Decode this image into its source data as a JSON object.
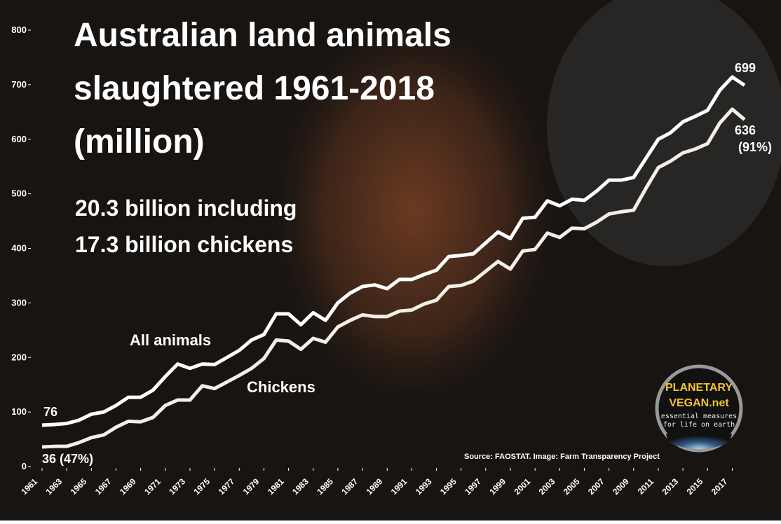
{
  "chart_data": {
    "type": "line",
    "title": [
      "Australian land animals",
      "slaughtered 1961-2018",
      "(million)"
    ],
    "subtitle": [
      "20.3 billion including",
      "17.3 billion chickens"
    ],
    "source": "Source: FAOSTAT. Image: Farm Transparency Project",
    "logo": {
      "name": [
        "PLANETARY",
        "VEGAN.net"
      ],
      "tagline": [
        "essential measures",
        "for life on earth"
      ]
    },
    "x": [
      1961,
      1962,
      1963,
      1964,
      1965,
      1966,
      1967,
      1968,
      1969,
      1970,
      1971,
      1972,
      1973,
      1974,
      1975,
      1976,
      1977,
      1978,
      1979,
      1980,
      1981,
      1982,
      1983,
      1984,
      1985,
      1986,
      1987,
      1988,
      1989,
      1990,
      1991,
      1992,
      1993,
      1994,
      1995,
      1996,
      1997,
      1998,
      1999,
      2000,
      2001,
      2002,
      2003,
      2004,
      2005,
      2006,
      2007,
      2008,
      2009,
      2010,
      2011,
      2012,
      2013,
      2014,
      2015,
      2016,
      2017,
      2018
    ],
    "xlim": [
      1961,
      2018
    ],
    "xticks": [
      1961,
      1963,
      1965,
      1967,
      1969,
      1971,
      1973,
      1975,
      1977,
      1979,
      1981,
      1983,
      1985,
      1987,
      1989,
      1991,
      1993,
      1995,
      1997,
      1999,
      2001,
      2003,
      2005,
      2007,
      2009,
      2011,
      2013,
      2015,
      2017
    ],
    "ylim": [
      0,
      800
    ],
    "yticks": [
      0,
      100,
      200,
      300,
      400,
      500,
      600,
      700,
      800
    ],
    "series": [
      {
        "name": "All animals",
        "color": "#ffffff",
        "values": [
          76,
          77,
          79,
          85,
          96,
          100,
          112,
          127,
          127,
          140,
          165,
          188,
          180,
          188,
          187,
          200,
          213,
          232,
          242,
          280,
          280,
          260,
          282,
          268,
          300,
          318,
          330,
          333,
          326,
          343,
          343,
          352,
          360,
          385,
          387,
          390,
          410,
          430,
          418,
          455,
          457,
          487,
          478,
          490,
          488,
          505,
          525,
          525,
          530,
          565,
          600,
          612,
          632,
          642,
          653,
          690,
          714,
          699
        ]
      },
      {
        "name": "Chickens",
        "color": "#f2efe4",
        "values": [
          36,
          37,
          37,
          44,
          53,
          58,
          72,
          83,
          82,
          90,
          112,
          122,
          122,
          148,
          143,
          155,
          167,
          180,
          198,
          232,
          230,
          215,
          235,
          228,
          256,
          268,
          278,
          275,
          275,
          285,
          287,
          298,
          305,
          330,
          332,
          340,
          358,
          376,
          362,
          395,
          398,
          428,
          420,
          437,
          436,
          448,
          463,
          467,
          470,
          510,
          548,
          560,
          575,
          582,
          592,
          630,
          655,
          636
        ],
        "value_labels": [
          "36 (47%)",
          null,
          null,
          null,
          null,
          null,
          null,
          null,
          null,
          null,
          null,
          null,
          null,
          null,
          null,
          null,
          null,
          null,
          null,
          null,
          null,
          null,
          null,
          null,
          null,
          null,
          null,
          null,
          null,
          null,
          null,
          null,
          null,
          null,
          null,
          null,
          null,
          null,
          null,
          null,
          null,
          null,
          null,
          null,
          null,
          null,
          null,
          null,
          null,
          null,
          null,
          null,
          null,
          null,
          null,
          null,
          null,
          "636 (91%)"
        ]
      }
    ]
  }
}
